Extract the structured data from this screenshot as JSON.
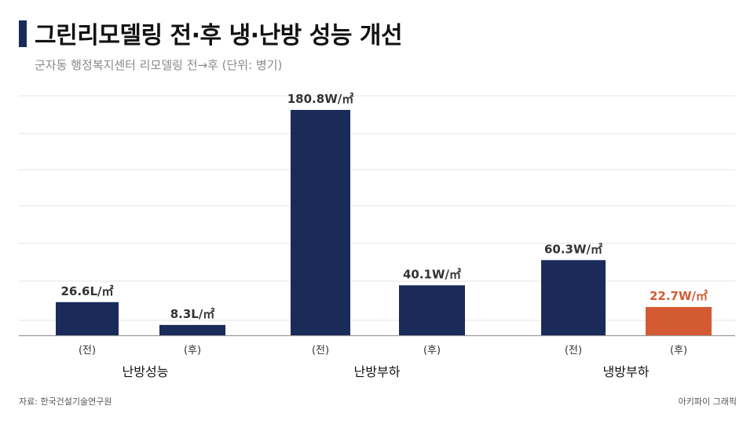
{
  "header": {
    "title": "그린리모델링 전·후 냉·난방 성능 개선",
    "subtitle": "군자동 행정복지센터 리모델링 전→후 (단위: 병기)"
  },
  "footer": {
    "source": "자료: 한국건설기술연구원",
    "brand": "아키파이 그래픽"
  },
  "colors": {
    "bar_default": "#1a2b5a",
    "bar_highlight": "#d35a32",
    "grid": "#e6e6e6",
    "axis": "#9a9a9a",
    "label_text": "#333333"
  },
  "chart_data": {
    "type": "bar",
    "grid": true,
    "groups": [
      {
        "name": "난방성능",
        "bars": [
          {
            "category": "(전)",
            "value": 26.6,
            "label": "26.6L/㎡",
            "highlight": false
          },
          {
            "category": "(후)",
            "value": 8.3,
            "label": "8.3L/㎡",
            "highlight": false
          }
        ]
      },
      {
        "name": "난방부하",
        "bars": [
          {
            "category": "(전)",
            "value": 180.8,
            "label": "180.8W/㎡",
            "highlight": false
          },
          {
            "category": "(후)",
            "value": 40.1,
            "label": "40.1W/㎡",
            "highlight": false
          }
        ]
      },
      {
        "name": "냉방부하",
        "bars": [
          {
            "category": "(전)",
            "value": 60.3,
            "label": "60.3W/㎡",
            "highlight": false
          },
          {
            "category": "(후)",
            "value": 22.7,
            "label": "22.7W/㎡",
            "highlight": true
          }
        ]
      }
    ]
  }
}
